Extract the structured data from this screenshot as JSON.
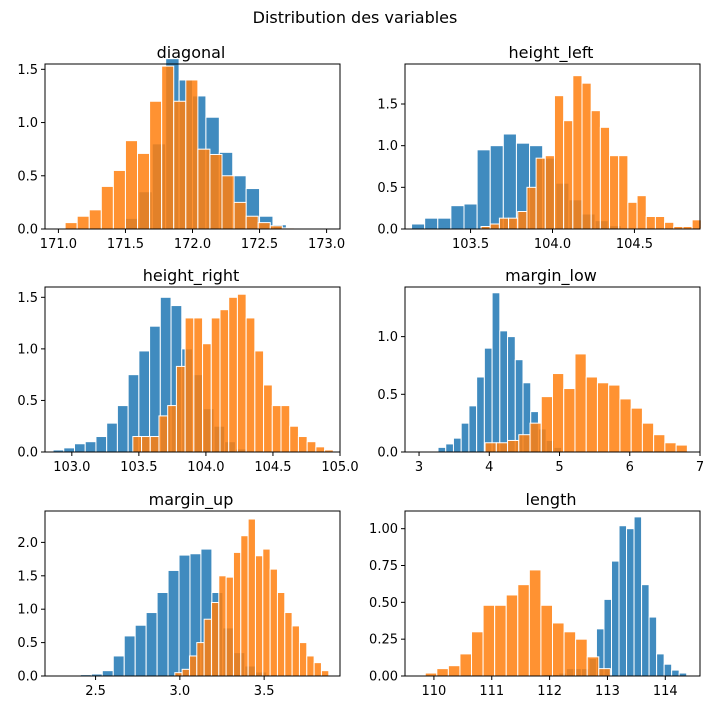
{
  "figure": {
    "suptitle": "Distribution des variables"
  },
  "colors": {
    "series_a": "#1f77b4",
    "series_b": "#ff7f0e"
  },
  "chart_data": [
    {
      "type": "bar",
      "title": "diagonal",
      "xlim": [
        170.9,
        173.1
      ],
      "ylim": [
        0,
        1.55
      ],
      "xticks": [
        171.0,
        171.5,
        172.0,
        172.5,
        173.0
      ],
      "xtick_labels": [
        "171.0",
        "171.5",
        "172.0",
        "172.5",
        "173.0"
      ],
      "yticks": [
        0,
        0.5,
        1.0,
        1.5
      ],
      "ytick_labels": [
        "0.0",
        "0.5",
        "1.0",
        "1.5"
      ],
      "series": [
        {
          "bin_width": 0.1,
          "bins": [
            [
              171.5,
              0.1
            ],
            [
              171.6,
              0.35
            ],
            [
              171.7,
              0.8
            ],
            [
              171.8,
              1.6
            ],
            [
              171.9,
              1.4
            ],
            [
              172.0,
              1.25
            ],
            [
              172.1,
              1.05
            ],
            [
              172.2,
              0.72
            ],
            [
              172.3,
              0.5
            ],
            [
              172.4,
              0.38
            ],
            [
              172.5,
              0.12
            ],
            [
              172.6,
              0.04
            ]
          ]
        },
        {
          "bin_width": 0.09,
          "bins": [
            [
              171.05,
              0.06
            ],
            [
              171.14,
              0.12
            ],
            [
              171.23,
              0.18
            ],
            [
              171.32,
              0.4
            ],
            [
              171.41,
              0.55
            ],
            [
              171.5,
              0.83
            ],
            [
              171.59,
              0.71
            ],
            [
              171.68,
              1.2
            ],
            [
              171.77,
              1.53
            ],
            [
              171.86,
              1.2
            ],
            [
              171.95,
              1.4
            ],
            [
              172.04,
              0.75
            ],
            [
              172.13,
              0.7
            ],
            [
              172.22,
              0.5
            ],
            [
              172.31,
              0.25
            ],
            [
              172.4,
              0.12
            ],
            [
              172.49,
              0.06
            ],
            [
              172.58,
              0.03
            ],
            [
              172.67,
              0.01
            ]
          ]
        }
      ]
    },
    {
      "type": "bar",
      "title": "height_left",
      "xlim": [
        103.1,
        104.9
      ],
      "ylim": [
        0,
        1.98
      ],
      "xticks": [
        103.5,
        104.0,
        104.5
      ],
      "xtick_labels": [
        "103.5",
        "104.0",
        "104.5"
      ],
      "yticks": [
        0,
        0.5,
        1.0,
        1.5
      ],
      "ytick_labels": [
        "0.0",
        "0.5",
        "1.0",
        "1.5"
      ],
      "series": [
        {
          "bin_width": 0.08,
          "bins": [
            [
              103.14,
              0.06
            ],
            [
              103.22,
              0.13
            ],
            [
              103.3,
              0.13
            ],
            [
              103.38,
              0.28
            ],
            [
              103.46,
              0.3
            ],
            [
              103.54,
              0.95
            ],
            [
              103.62,
              1.0
            ],
            [
              103.7,
              1.14
            ],
            [
              103.78,
              1.03
            ],
            [
              103.86,
              1.0
            ],
            [
              103.94,
              0.85
            ],
            [
              104.02,
              0.55
            ],
            [
              104.1,
              0.35
            ],
            [
              104.18,
              0.18
            ],
            [
              104.26,
              0.1
            ],
            [
              104.34,
              0.04
            ],
            [
              104.42,
              0.01
            ]
          ]
        },
        {
          "bin_width": 0.056,
          "bins": [
            [
              103.564,
              0.03
            ],
            [
              103.62,
              0.06
            ],
            [
              103.676,
              0.13
            ],
            [
              103.732,
              0.13
            ],
            [
              103.788,
              0.21
            ],
            [
              103.844,
              0.5
            ],
            [
              103.9,
              0.85
            ],
            [
              103.956,
              0.88
            ],
            [
              104.012,
              1.6
            ],
            [
              104.068,
              1.3
            ],
            [
              104.124,
              1.84
            ],
            [
              104.18,
              1.75
            ],
            [
              104.236,
              1.42
            ],
            [
              104.292,
              1.22
            ],
            [
              104.348,
              0.88
            ],
            [
              104.404,
              0.88
            ],
            [
              104.46,
              0.32
            ],
            [
              104.516,
              0.4
            ],
            [
              104.572,
              0.15
            ],
            [
              104.628,
              0.15
            ],
            [
              104.684,
              0.08
            ],
            [
              104.74,
              0.03
            ],
            [
              104.796,
              0.03
            ],
            [
              104.852,
              0.11
            ]
          ]
        }
      ]
    },
    {
      "type": "bar",
      "title": "height_right",
      "xlim": [
        102.8,
        105.0
      ],
      "ylim": [
        0,
        1.6
      ],
      "xticks": [
        103.0,
        103.5,
        104.0,
        104.5,
        105.0
      ],
      "xtick_labels": [
        "103.0",
        "103.5",
        "104.0",
        "104.5",
        "105.0"
      ],
      "yticks": [
        0,
        0.5,
        1.0,
        1.5
      ],
      "ytick_labels": [
        "0.0",
        "0.5",
        "1.0",
        "1.5"
      ],
      "series": [
        {
          "bin_width": 0.08,
          "bins": [
            [
              102.86,
              0.02
            ],
            [
              102.94,
              0.04
            ],
            [
              103.02,
              0.08
            ],
            [
              103.1,
              0.1
            ],
            [
              103.18,
              0.15
            ],
            [
              103.26,
              0.28
            ],
            [
              103.34,
              0.45
            ],
            [
              103.42,
              0.75
            ],
            [
              103.5,
              0.98
            ],
            [
              103.58,
              1.22
            ],
            [
              103.66,
              1.5
            ],
            [
              103.74,
              1.42
            ],
            [
              103.82,
              1.0
            ],
            [
              103.9,
              0.75
            ],
            [
              103.98,
              0.42
            ],
            [
              104.06,
              0.25
            ],
            [
              104.14,
              0.1
            ],
            [
              104.22,
              0.03
            ],
            [
              104.3,
              0.01
            ]
          ]
        },
        {
          "bin_width": 0.065,
          "bins": [
            [
              103.455,
              0.15
            ],
            [
              103.52,
              0.15
            ],
            [
              103.585,
              0.15
            ],
            [
              103.65,
              0.35
            ],
            [
              103.715,
              0.45
            ],
            [
              103.78,
              0.83
            ],
            [
              103.845,
              1.3
            ],
            [
              103.91,
              1.3
            ],
            [
              103.975,
              1.05
            ],
            [
              104.04,
              1.3
            ],
            [
              104.105,
              1.38
            ],
            [
              104.17,
              1.5
            ],
            [
              104.235,
              1.53
            ],
            [
              104.3,
              1.3
            ],
            [
              104.365,
              0.98
            ],
            [
              104.43,
              0.65
            ],
            [
              104.495,
              0.45
            ],
            [
              104.56,
              0.45
            ],
            [
              104.625,
              0.25
            ],
            [
              104.69,
              0.15
            ],
            [
              104.755,
              0.1
            ],
            [
              104.82,
              0.05
            ],
            [
              104.885,
              0.02
            ]
          ]
        }
      ]
    },
    {
      "type": "bar",
      "title": "margin_low",
      "xlim": [
        2.8,
        7.0
      ],
      "ylim": [
        0,
        1.43
      ],
      "xticks": [
        3,
        4,
        5,
        6,
        7
      ],
      "xtick_labels": [
        "3",
        "4",
        "5",
        "6",
        "7"
      ],
      "yticks": [
        0,
        0.5,
        1.0
      ],
      "ytick_labels": [
        "0.0",
        "0.5",
        "1.0"
      ],
      "series": [
        {
          "bin_width": 0.11,
          "bins": [
            [
              3.27,
              0.04
            ],
            [
              3.38,
              0.07
            ],
            [
              3.49,
              0.12
            ],
            [
              3.6,
              0.25
            ],
            [
              3.71,
              0.4
            ],
            [
              3.82,
              0.65
            ],
            [
              3.93,
              0.9
            ],
            [
              4.04,
              1.38
            ],
            [
              4.15,
              1.05
            ],
            [
              4.26,
              1.0
            ],
            [
              4.37,
              0.8
            ],
            [
              4.48,
              0.6
            ],
            [
              4.59,
              0.35
            ],
            [
              4.7,
              0.2
            ],
            [
              4.81,
              0.1
            ],
            [
              4.92,
              0.04
            ],
            [
              5.03,
              0.01
            ]
          ]
        },
        {
          "bin_width": 0.16,
          "bins": [
            [
              3.94,
              0.08
            ],
            [
              4.1,
              0.08
            ],
            [
              4.26,
              0.1
            ],
            [
              4.42,
              0.15
            ],
            [
              4.58,
              0.25
            ],
            [
              4.74,
              0.48
            ],
            [
              4.9,
              0.68
            ],
            [
              5.06,
              0.55
            ],
            [
              5.22,
              0.85
            ],
            [
              5.38,
              0.65
            ],
            [
              5.54,
              0.6
            ],
            [
              5.7,
              0.58
            ],
            [
              5.86,
              0.46
            ],
            [
              6.02,
              0.38
            ],
            [
              6.18,
              0.25
            ],
            [
              6.34,
              0.15
            ],
            [
              6.5,
              0.08
            ],
            [
              6.66,
              0.06
            ]
          ]
        }
      ]
    },
    {
      "type": "bar",
      "title": "margin_up",
      "xlim": [
        2.2,
        3.95
      ],
      "ylim": [
        0,
        2.47
      ],
      "xticks": [
        2.5,
        3.0,
        3.5
      ],
      "xtick_labels": [
        "2.5",
        "3.0",
        "3.5"
      ],
      "yticks": [
        0,
        0.5,
        1.0,
        1.5,
        2.0
      ],
      "ytick_labels": [
        "0.0",
        "0.5",
        "1.0",
        "1.5",
        "2.0"
      ],
      "series": [
        {
          "bin_width": 0.065,
          "bins": [
            [
              2.28,
              0.01
            ],
            [
              2.345,
              0.01
            ],
            [
              2.41,
              0.02
            ],
            [
              2.475,
              0.03
            ],
            [
              2.54,
              0.08
            ],
            [
              2.605,
              0.3
            ],
            [
              2.67,
              0.6
            ],
            [
              2.735,
              0.76
            ],
            [
              2.8,
              0.95
            ],
            [
              2.865,
              1.25
            ],
            [
              2.93,
              1.58
            ],
            [
              2.995,
              1.81
            ],
            [
              3.06,
              1.83
            ],
            [
              3.125,
              1.9
            ],
            [
              3.19,
              1.25
            ],
            [
              3.255,
              0.72
            ],
            [
              3.32,
              0.35
            ],
            [
              3.385,
              0.15
            ],
            [
              3.45,
              0.06
            ],
            [
              3.515,
              0.02
            ]
          ]
        },
        {
          "bin_width": 0.0435,
          "bins": [
            [
              2.97,
              0.05
            ],
            [
              3.0135,
              0.1
            ],
            [
              3.057,
              0.3
            ],
            [
              3.1005,
              0.5
            ],
            [
              3.144,
              0.85
            ],
            [
              3.1875,
              1.1
            ],
            [
              3.231,
              1.5
            ],
            [
              3.2745,
              1.48
            ],
            [
              3.318,
              1.85
            ],
            [
              3.3615,
              2.1
            ],
            [
              3.405,
              2.35
            ],
            [
              3.4485,
              1.8
            ],
            [
              3.492,
              1.9
            ],
            [
              3.5355,
              1.6
            ],
            [
              3.579,
              1.25
            ],
            [
              3.6225,
              0.95
            ],
            [
              3.666,
              0.75
            ],
            [
              3.7095,
              0.5
            ],
            [
              3.753,
              0.3
            ],
            [
              3.7965,
              0.2
            ],
            [
              3.84,
              0.08
            ]
          ]
        }
      ]
    },
    {
      "type": "bar",
      "title": "length",
      "xlim": [
        109.5,
        114.6
      ],
      "ylim": [
        0,
        1.12
      ],
      "xticks": [
        110,
        111,
        112,
        113,
        114
      ],
      "xtick_labels": [
        "110",
        "111",
        "112",
        "113",
        "114"
      ],
      "yticks": [
        0,
        0.25,
        0.5,
        0.75,
        1.0
      ],
      "ytick_labels": [
        "0.00",
        "0.25",
        "0.50",
        "0.75",
        "1.00"
      ],
      "series": [
        {
          "bin_width": 0.13,
          "bins": [
            [
              111.9,
              0.01
            ],
            [
              112.03,
              0.01
            ],
            [
              112.16,
              0.02
            ],
            [
              112.29,
              0.05
            ],
            [
              112.42,
              0.05
            ],
            [
              112.55,
              0.05
            ],
            [
              112.68,
              0.12
            ],
            [
              112.81,
              0.32
            ],
            [
              112.94,
              0.52
            ],
            [
              113.07,
              0.78
            ],
            [
              113.2,
              1.02
            ],
            [
              113.33,
              1.0
            ],
            [
              113.46,
              1.08
            ],
            [
              113.59,
              0.62
            ],
            [
              113.72,
              0.4
            ],
            [
              113.85,
              0.15
            ],
            [
              113.98,
              0.08
            ],
            [
              114.11,
              0.04
            ],
            [
              114.24,
              0.02
            ]
          ]
        },
        {
          "bin_width": 0.2,
          "bins": [
            [
              109.85,
              0.02
            ],
            [
              110.05,
              0.05
            ],
            [
              110.25,
              0.07
            ],
            [
              110.45,
              0.15
            ],
            [
              110.65,
              0.3
            ],
            [
              110.85,
              0.48
            ],
            [
              111.05,
              0.48
            ],
            [
              111.25,
              0.55
            ],
            [
              111.45,
              0.62
            ],
            [
              111.65,
              0.72
            ],
            [
              111.85,
              0.48
            ],
            [
              112.05,
              0.36
            ],
            [
              112.25,
              0.3
            ],
            [
              112.45,
              0.25
            ],
            [
              112.65,
              0.13
            ],
            [
              112.85,
              0.05
            ]
          ]
        }
      ]
    }
  ]
}
